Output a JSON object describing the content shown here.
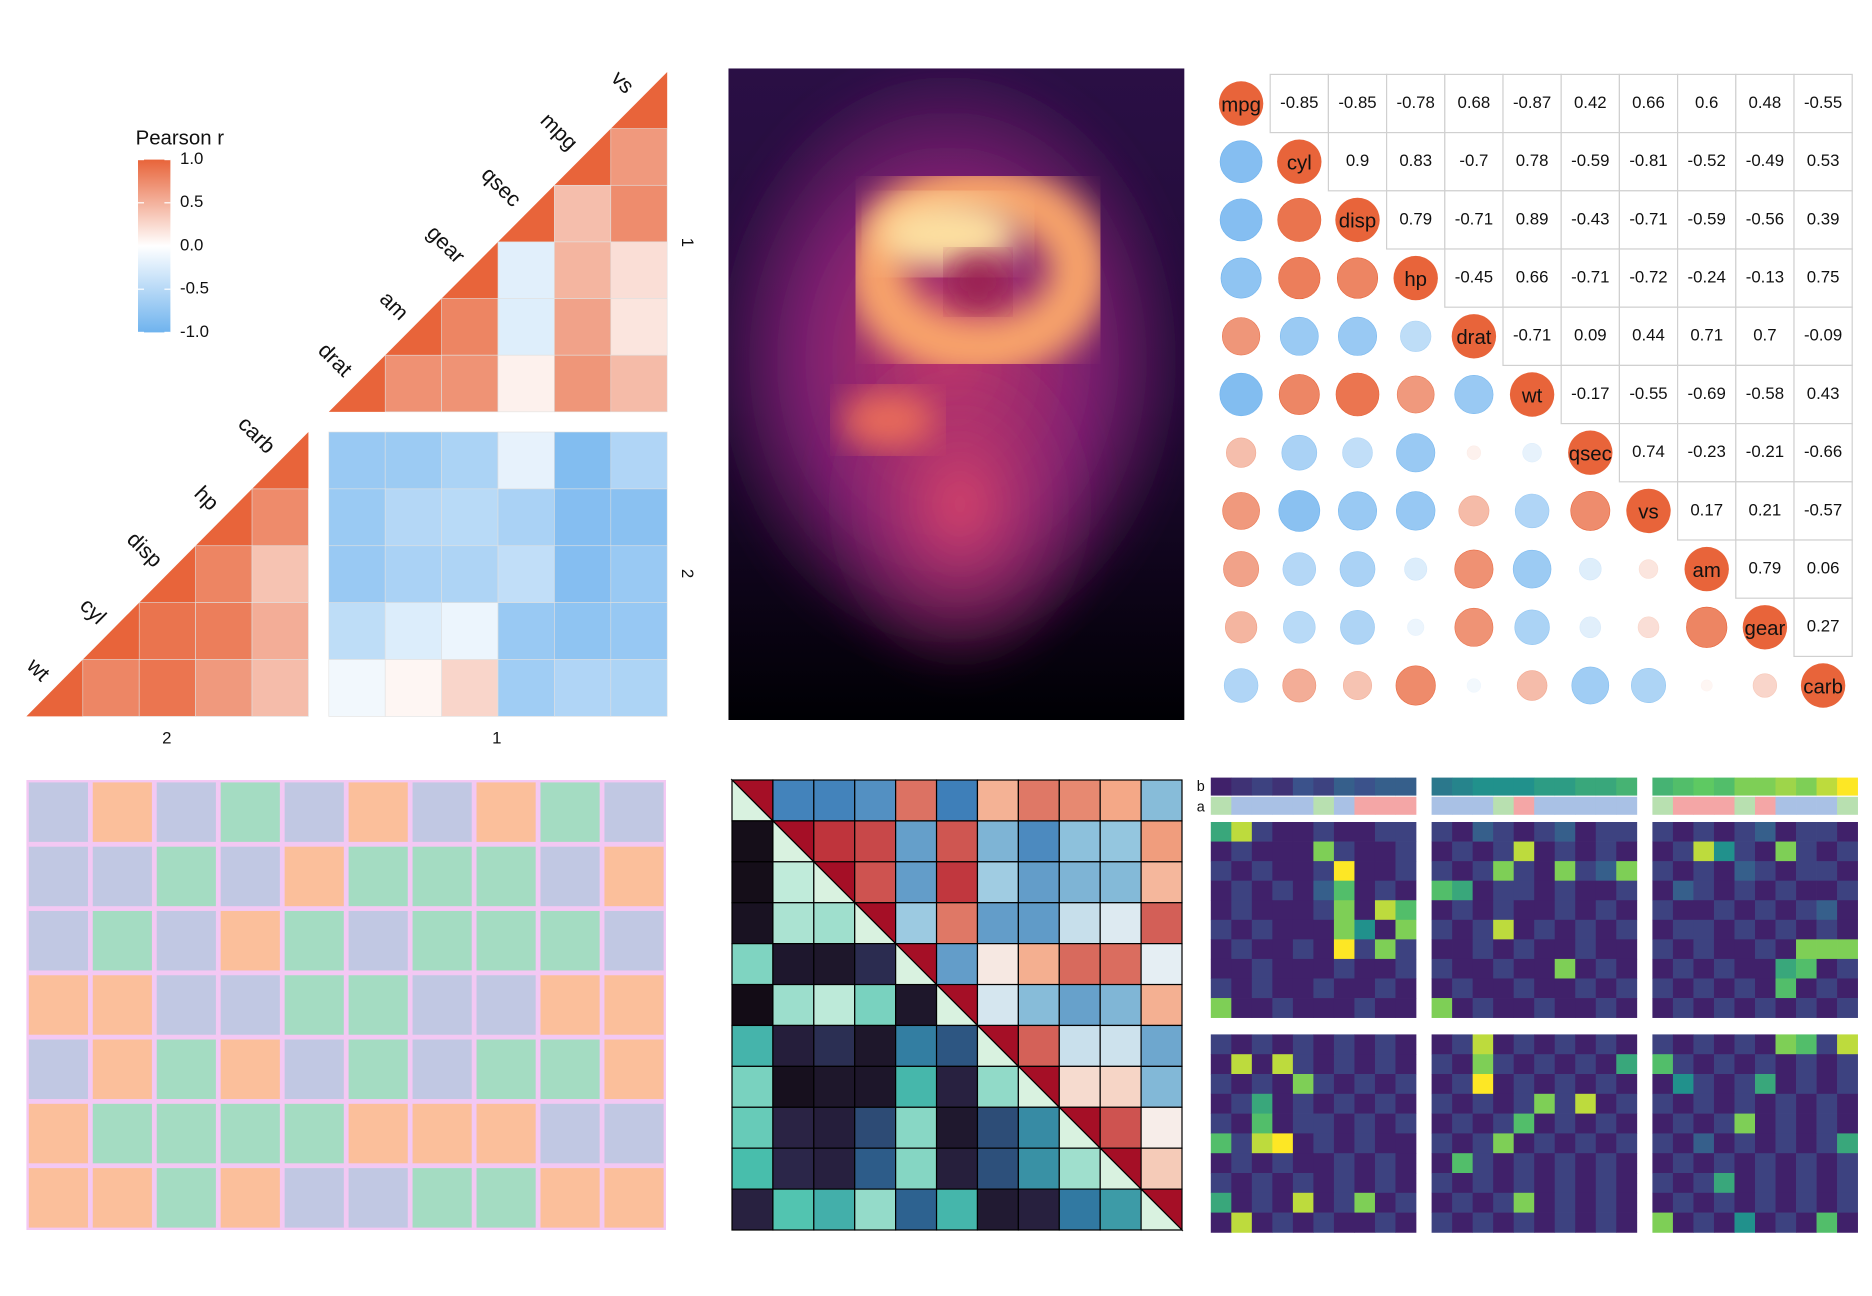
{
  "chart_data": [
    {
      "type": "triangle-heatmap",
      "legend_title": "Pearson r",
      "colorbar": {
        "lim": [
          -1,
          1
        ],
        "ticks": [
          {
            "value": 1,
            "label": "1.0"
          },
          {
            "value": 0.5,
            "label": "0.5"
          },
          {
            "value": 0,
            "label": "0.0"
          },
          {
            "value": -0.5,
            "label": "-0.5"
          },
          {
            "value": -1,
            "label": "-1.0"
          }
        ],
        "colors": [
          "#6fb3ee",
          "#ffffff",
          "#e8643a"
        ]
      },
      "groups": [
        {
          "name": "1",
          "variables": [
            "drat",
            "am",
            "gear",
            "qsec",
            "mpg",
            "vs"
          ]
        },
        {
          "name": "2",
          "variables": [
            "wt",
            "cyl",
            "disp",
            "hp",
            "carb"
          ]
        }
      ]
    },
    {
      "type": "corrplot",
      "variables": [
        "mpg",
        "cyl",
        "disp",
        "hp",
        "drat",
        "wt",
        "qsec",
        "vs",
        "am",
        "gear",
        "carb"
      ],
      "values": [
        [
          -0.85,
          -0.85,
          -0.78,
          0.68,
          -0.87,
          0.42,
          0.66,
          0.6,
          0.48,
          -0.55
        ],
        [
          0.9,
          0.83,
          -0.7,
          0.78,
          -0.59,
          -0.81,
          -0.52,
          -0.49,
          0.53
        ],
        [
          0.79,
          -0.71,
          0.89,
          -0.43,
          -0.71,
          -0.59,
          -0.56,
          0.39
        ],
        [
          -0.45,
          0.66,
          -0.71,
          -0.72,
          -0.24,
          -0.13,
          0.75
        ],
        [
          -0.71,
          0.09,
          0.44,
          0.71,
          0.7,
          -0.09
        ],
        [
          -0.17,
          -0.55,
          -0.69,
          -0.58,
          0.43
        ],
        [
          0.74,
          -0.23,
          -0.21,
          -0.66
        ],
        [
          0.17,
          0.21,
          -0.57
        ],
        [
          0.79,
          0.06
        ],
        [
          0.27
        ]
      ],
      "colors": [
        "#6fb3ee",
        "#ffffff",
        "#e8643a"
      ]
    },
    {
      "type": "tile",
      "values": [
        [
          0,
          1,
          0,
          2,
          0,
          1,
          0,
          1,
          2,
          0
        ],
        [
          0,
          0,
          2,
          0,
          1,
          2,
          2,
          2,
          0,
          1
        ],
        [
          0,
          2,
          0,
          1,
          2,
          0,
          2,
          2,
          2,
          0
        ],
        [
          1,
          1,
          0,
          0,
          2,
          2,
          0,
          0,
          1,
          1
        ],
        [
          0,
          1,
          2,
          1,
          0,
          2,
          0,
          2,
          2,
          1
        ],
        [
          1,
          2,
          2,
          2,
          2,
          1,
          1,
          1,
          0,
          0
        ],
        [
          1,
          1,
          2,
          1,
          0,
          0,
          2,
          2,
          1,
          1
        ]
      ],
      "colors": [
        "#c1c8e3",
        "#fbbf9b",
        "#a4dcc2"
      ],
      "border": "#f3c8f3"
    },
    {
      "type": "split-matrix",
      "upper_colors": [
        "#2166ac",
        "#92c5de",
        "#f7f7f7",
        "#f4a582",
        "#b2182b"
      ],
      "lower_colors": [
        "#0b0405",
        "#2b2447",
        "#2e6fa0",
        "#49c1ad",
        "#def5e5"
      ],
      "diagonal_colors": [
        "#a50f26",
        "#d9f2e0"
      ]
    },
    {
      "type": "heatmap-grid",
      "annotation_labels": [
        "b",
        "a"
      ],
      "colors": [
        "#440154",
        "#3b528b",
        "#21918c",
        "#5ec962",
        "#fde725"
      ],
      "a_colors": [
        "#a9c1e5",
        "#f4a6a6",
        "#b8e0b0"
      ],
      "panels": [
        {
          "b": [
            0.1,
            0.15,
            0.2,
            0.15,
            0.25,
            0.2,
            0.3,
            0.25,
            0.3,
            0.3
          ],
          "a": [
            2,
            0,
            0,
            0,
            0,
            2,
            0,
            1,
            1,
            1
          ],
          "values": [
            [
              0.6,
              0.9,
              0.2,
              0.1,
              0.1,
              0.2,
              0.1,
              0.1,
              0.2,
              0.2
            ],
            [
              0.1,
              0.2,
              0.1,
              0.1,
              0.1,
              0.8,
              0.2,
              0.1,
              0.1,
              0.2
            ],
            [
              0.2,
              0.1,
              0.2,
              0.1,
              0.1,
              0.2,
              1,
              0.1,
              0.1,
              0.2
            ],
            [
              0.1,
              0.2,
              0.1,
              0.2,
              0.1,
              0.3,
              0.7,
              0.1,
              0.2,
              0.1
            ],
            [
              0.1,
              0.2,
              0.1,
              0.1,
              0.1,
              0.2,
              0.8,
              0.1,
              0.9,
              0.7
            ],
            [
              0.2,
              0.1,
              0.2,
              0.1,
              0.1,
              0.1,
              0.8,
              0.5,
              0.1,
              0.8
            ],
            [
              0.1,
              0.2,
              0.1,
              0.1,
              0.2,
              0.1,
              1,
              0.2,
              0.8,
              0.2
            ],
            [
              0.1,
              0.1,
              0.2,
              0.1,
              0.1,
              0.1,
              0.2,
              0.1,
              0.1,
              0.2
            ],
            [
              0.2,
              0.1,
              0.2,
              0.1,
              0.1,
              0.2,
              0.1,
              0.1,
              0.2,
              0.1
            ],
            [
              0.8,
              0.1,
              0.1,
              0.2,
              0.1,
              0.1,
              0.1,
              0.2,
              0.1,
              0.1
            ]
          ]
        },
        {
          "b": [
            0.4,
            0.45,
            0.5,
            0.5,
            0.5,
            0.55,
            0.55,
            0.6,
            0.6,
            0.65
          ],
          "a": [
            0,
            0,
            0,
            2,
            1,
            0,
            0,
            0,
            0,
            0
          ],
          "values": [
            [
              0.2,
              0.1,
              0.3,
              0.2,
              0.1,
              0.2,
              0.3,
              0.1,
              0.2,
              0.2
            ],
            [
              0.1,
              0.2,
              0.1,
              0.2,
              0.9,
              0.1,
              0.2,
              0.1,
              0.2,
              0.1
            ],
            [
              0.2,
              0.1,
              0.2,
              0.8,
              0.2,
              0.1,
              0.8,
              0.2,
              0.3,
              0.8
            ],
            [
              0.7,
              0.6,
              0.1,
              0.2,
              0.2,
              0.1,
              0.2,
              0.1,
              0.1,
              0.2
            ],
            [
              0.1,
              0.2,
              0.1,
              0.2,
              0.1,
              0.1,
              0.2,
              0.1,
              0.2,
              0.1
            ],
            [
              0.2,
              0.1,
              0.2,
              0.9,
              0.1,
              0.2,
              0.1,
              0.2,
              0.1,
              0.2
            ],
            [
              0.1,
              0.1,
              0.2,
              0.1,
              0.2,
              0.1,
              0.1,
              0.2,
              0.1,
              0.1
            ],
            [
              0.2,
              0.1,
              0.1,
              0.2,
              0.1,
              0.1,
              0.8,
              0.1,
              0.2,
              0.1
            ],
            [
              0.1,
              0.2,
              0.1,
              0.1,
              0.2,
              0.1,
              0.1,
              0.2,
              0.1,
              0.2
            ],
            [
              0.8,
              0.1,
              0.2,
              0.1,
              0.1,
              0.2,
              0.1,
              0.1,
              0.2,
              0.1
            ]
          ]
        },
        {
          "b": [
            0.65,
            0.7,
            0.75,
            0.7,
            0.8,
            0.8,
            0.85,
            0.8,
            0.9,
            1
          ],
          "a": [
            2,
            1,
            1,
            1,
            2,
            1,
            0,
            0,
            0,
            2
          ],
          "values": [
            [
              0.2,
              0.1,
              0.2,
              0.1,
              0.2,
              0.3,
              0.1,
              0.2,
              0.2,
              0.1
            ],
            [
              0.1,
              0.2,
              0.9,
              0.5,
              0.2,
              0.1,
              0.8,
              0.2,
              0.1,
              0.2
            ],
            [
              0.2,
              0.1,
              0.2,
              0.1,
              0.3,
              0.2,
              0.1,
              0.2,
              0.2,
              0.1
            ],
            [
              0.1,
              0.3,
              0.2,
              0.1,
              0.2,
              0.1,
              0.2,
              0.1,
              0.1,
              0.2
            ],
            [
              0.2,
              0.1,
              0.1,
              0.2,
              0.1,
              0.2,
              0.1,
              0.2,
              0.3,
              0.1
            ],
            [
              0.1,
              0.2,
              0.2,
              0.1,
              0.2,
              0.1,
              0.2,
              0.1,
              0.2,
              0.1
            ],
            [
              0.2,
              0.1,
              0.2,
              0.1,
              0.1,
              0.2,
              0.1,
              0.8,
              0.8,
              0.8
            ],
            [
              0.1,
              0.2,
              0.1,
              0.2,
              0.1,
              0.1,
              0.6,
              0.7,
              0.1,
              0.2
            ],
            [
              0.2,
              0.1,
              0.2,
              0.1,
              0.2,
              0.1,
              0.7,
              0.1,
              0.2,
              0.1
            ],
            [
              0.1,
              0.2,
              0.1,
              0.2,
              0.1,
              0.2,
              0.1,
              0.2,
              0.1,
              0.2
            ]
          ]
        },
        {
          "values": [
            [
              0.2,
              0.1,
              0.2,
              0.1,
              0.2,
              0.1,
              0.2,
              0.1,
              0.2,
              0.1
            ],
            [
              0.1,
              0.9,
              0.1,
              0.9,
              0.2,
              0.1,
              0.2,
              0.1,
              0.2,
              0.1
            ],
            [
              0.2,
              0.1,
              0.2,
              0.1,
              0.8,
              0.2,
              0.1,
              0.2,
              0.1,
              0.2
            ],
            [
              0.1,
              0.2,
              0.6,
              0.1,
              0.2,
              0.1,
              0.2,
              0.1,
              0.2,
              0.1
            ],
            [
              0.2,
              0.1,
              0.7,
              0.1,
              0.2,
              0.2,
              0.1,
              0.2,
              0.1,
              0.2
            ],
            [
              0.7,
              0.2,
              0.9,
              1,
              0.1,
              0.2,
              0.1,
              0.2,
              0.1,
              0.1
            ],
            [
              0.1,
              0.2,
              0.1,
              0.2,
              0.1,
              0.1,
              0.2,
              0.1,
              0.2,
              0.1
            ],
            [
              0.2,
              0.1,
              0.2,
              0.1,
              0.2,
              0.1,
              0.2,
              0.1,
              0.2,
              0.1
            ],
            [
              0.6,
              0.1,
              0.2,
              0.1,
              0.9,
              0.1,
              0.2,
              0.8,
              0.1,
              0.2
            ],
            [
              0.1,
              0.9,
              0.1,
              0.2,
              0.1,
              0.2,
              0.1,
              0.1,
              0.2,
              0.1
            ]
          ]
        },
        {
          "values": [
            [
              0.1,
              0.2,
              0.9,
              0.1,
              0.2,
              0.1,
              0.2,
              0.1,
              0.2,
              0.1
            ],
            [
              0.2,
              0.1,
              0.8,
              0.2,
              0.1,
              0.2,
              0.1,
              0.2,
              0.1,
              0.6
            ],
            [
              0.1,
              0.2,
              1,
              0.1,
              0.2,
              0.1,
              0.2,
              0.1,
              0.2,
              0.1
            ],
            [
              0.2,
              0.1,
              0.2,
              0.1,
              0.2,
              0.8,
              0.2,
              0.9,
              0.1,
              0.2
            ],
            [
              0.1,
              0.2,
              0.1,
              0.2,
              0.7,
              0.1,
              0.2,
              0.1,
              0.2,
              0.1
            ],
            [
              0.2,
              0.1,
              0.2,
              0.8,
              0.1,
              0.2,
              0.1,
              0.2,
              0.1,
              0.2
            ],
            [
              0.1,
              0.7,
              0.2,
              0.1,
              0.2,
              0.1,
              0.2,
              0.1,
              0.2,
              0.1
            ],
            [
              0.2,
              0.1,
              0.2,
              0.1,
              0.2,
              0.1,
              0.2,
              0.1,
              0.2,
              0.1
            ],
            [
              0.1,
              0.2,
              0.1,
              0.2,
              0.8,
              0.1,
              0.2,
              0.1,
              0.2,
              0.1
            ],
            [
              0.2,
              0.1,
              0.2,
              0.1,
              0.2,
              0.1,
              0.2,
              0.1,
              0.2,
              0.1
            ]
          ]
        },
        {
          "values": [
            [
              0.2,
              0.1,
              0.2,
              0.1,
              0.2,
              0.1,
              0.8,
              0.7,
              0.2,
              0.9
            ],
            [
              0.7,
              0.2,
              0.1,
              0.2,
              0.1,
              0.2,
              0.1,
              0.2,
              0.1,
              0.2
            ],
            [
              0.1,
              0.5,
              0.2,
              0.1,
              0.2,
              0.6,
              0.1,
              0.2,
              0.1,
              0.2
            ],
            [
              0.2,
              0.1,
              0.2,
              0.1,
              0.2,
              0.1,
              0.2,
              0.1,
              0.2,
              0.1
            ],
            [
              0.1,
              0.2,
              0.1,
              0.2,
              0.8,
              0.1,
              0.2,
              0.1,
              0.2,
              0.1
            ],
            [
              0.2,
              0.1,
              0.3,
              0.1,
              0.2,
              0.1,
              0.2,
              0.1,
              0.2,
              0.6
            ],
            [
              0.1,
              0.2,
              0.1,
              0.2,
              0.1,
              0.2,
              0.1,
              0.2,
              0.1,
              0.2
            ],
            [
              0.2,
              0.1,
              0.2,
              0.6,
              0.1,
              0.2,
              0.1,
              0.2,
              0.1,
              0.2
            ],
            [
              0.1,
              0.2,
              0.1,
              0.2,
              0.1,
              0.2,
              0.1,
              0.2,
              0.1,
              0.2
            ],
            [
              0.8,
              0.1,
              0.2,
              0.1,
              0.5,
              0.1,
              0.2,
              0.1,
              0.7,
              0.1
            ]
          ]
        }
      ]
    }
  ]
}
